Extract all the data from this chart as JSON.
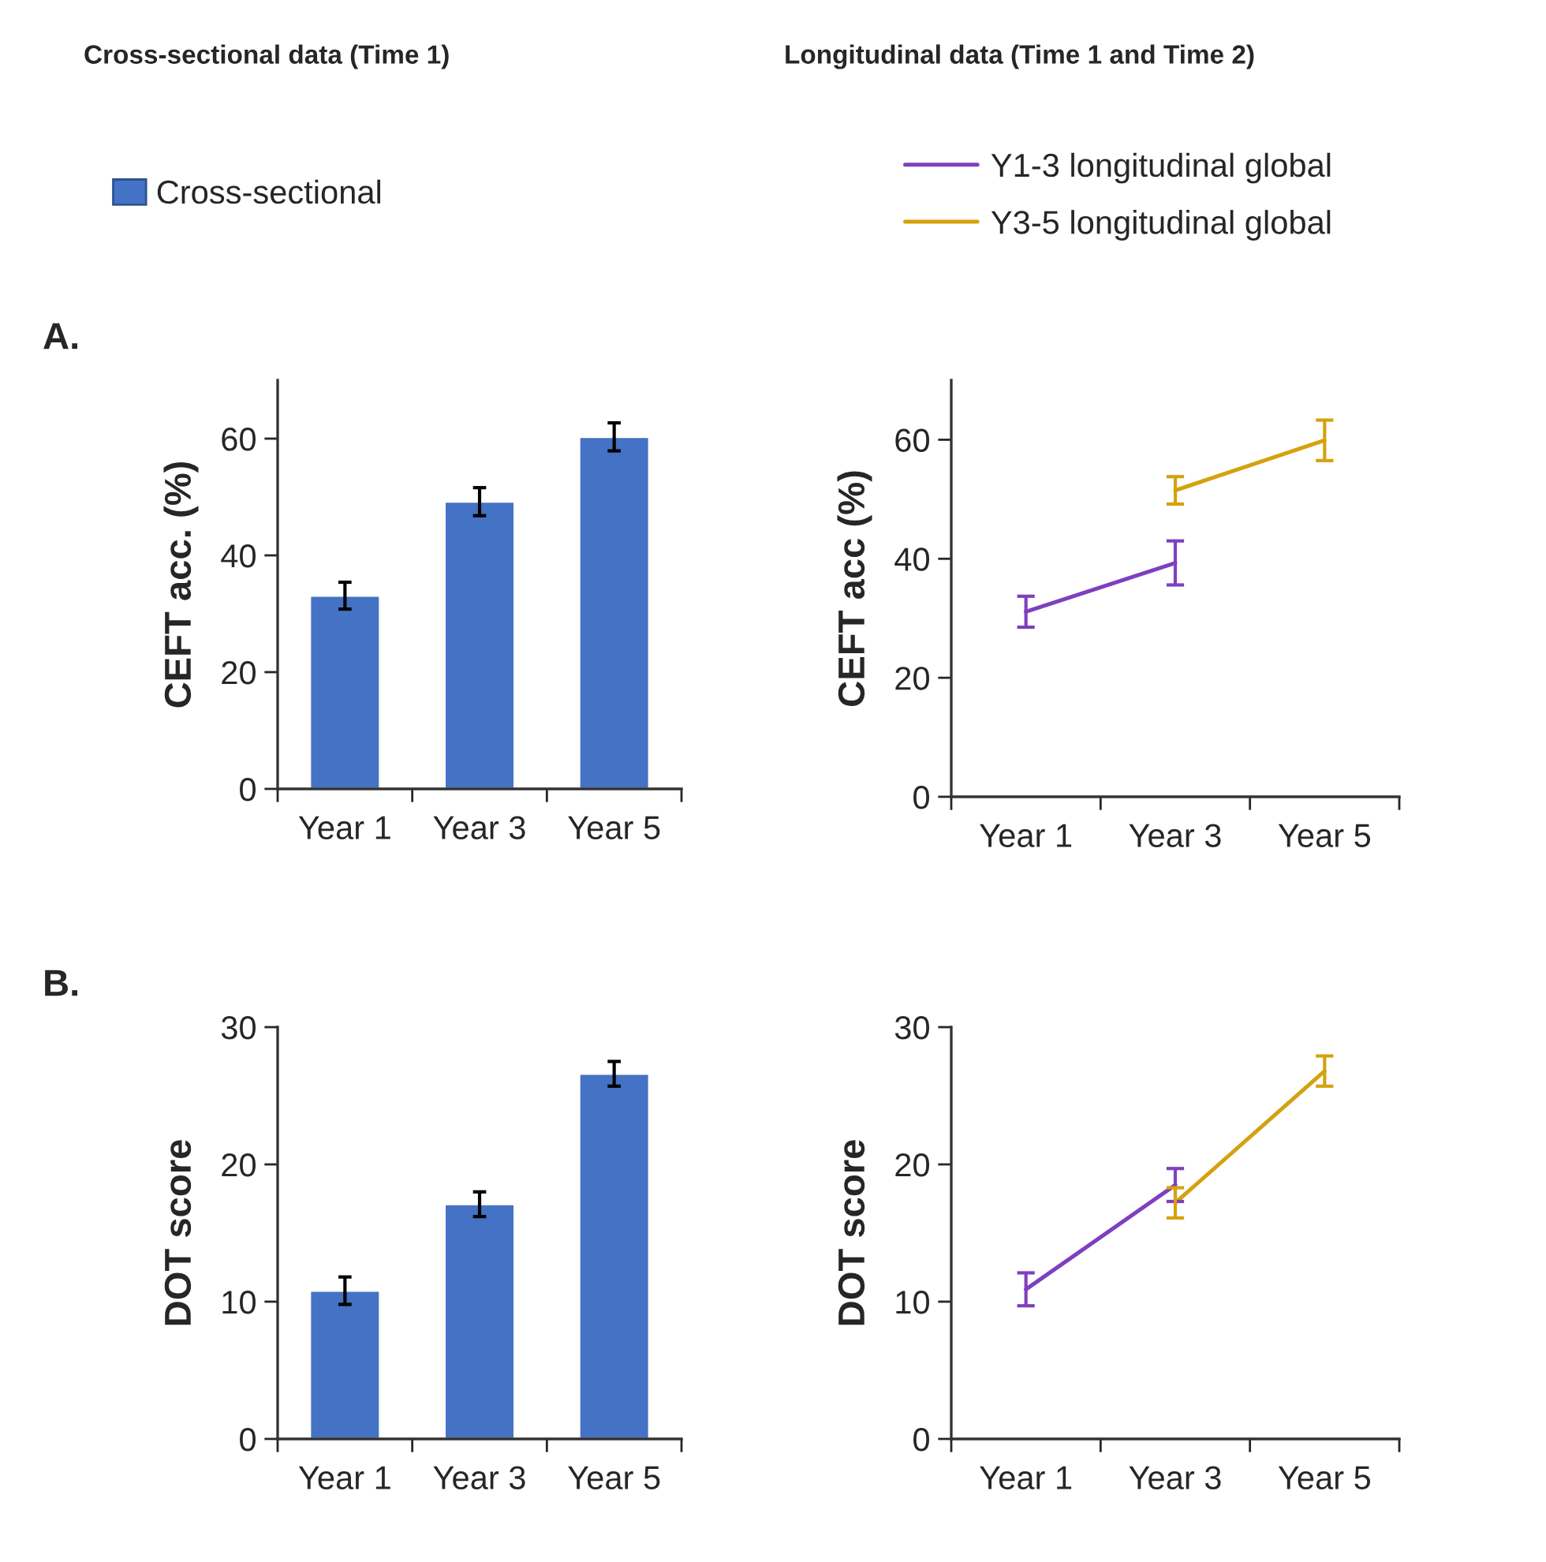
{
  "chart_data": [
    {
      "type": "bar",
      "title": "Cross-sectional data (Time 1)",
      "ylabel": "CEFT acc. (%)",
      "annotations": [
        "A."
      ],
      "categories": [
        "Year 1",
        "Year 3",
        "Year 5"
      ],
      "series": [
        {
          "name": "Cross-sectional",
          "color": "#4472c4",
          "values": [
            33.1,
            49.2,
            60.3
          ],
          "errors": [
            2.3,
            2.4,
            2.4
          ]
        }
      ],
      "ylim": [
        0,
        70
      ],
      "yticks": [
        0,
        20,
        40,
        60
      ],
      "legend": "top",
      "grid": false
    },
    {
      "type": "line",
      "title": "Longitudinal data (Time 1 and Time 2)",
      "ylabel": "CEFT acc (%)",
      "categories": [
        "Year 1",
        "Year 3",
        "Year 5"
      ],
      "series": [
        {
          "name": "Y1-3 longitudinal global",
          "color": "#7f3fbf",
          "x": [
            "Year 1",
            "Year 3"
          ],
          "values": [
            31.1,
            39.3
          ],
          "errors": [
            2.6,
            3.7
          ]
        },
        {
          "name": "Y3-5 longitudinal global",
          "color": "#d4a20f",
          "x": [
            "Year 3",
            "Year 5"
          ],
          "values": [
            51.5,
            59.9
          ],
          "errors": [
            2.3,
            3.4
          ]
        }
      ],
      "ylim": [
        0,
        70
      ],
      "yticks": [
        0,
        20,
        40,
        60
      ],
      "legend": "top",
      "marker": "none",
      "line_style": "solid",
      "grid": false
    },
    {
      "type": "bar",
      "ylabel": "DOT score",
      "annotations": [
        "B."
      ],
      "categories": [
        "Year 1",
        "Year 3",
        "Year 5"
      ],
      "series": [
        {
          "color": "#4472c4",
          "values": [
            10.8,
            17.1,
            26.6
          ],
          "errors": [
            1.0,
            0.9,
            0.9
          ]
        }
      ],
      "ylim": [
        0,
        30
      ],
      "yticks": [
        0,
        10,
        20,
        30
      ],
      "grid": false
    },
    {
      "type": "line",
      "ylabel": "DOT score",
      "categories": [
        "Year 1",
        "Year 3",
        "Year 5"
      ],
      "series": [
        {
          "color": "#7f3fbf",
          "x": [
            "Year 1",
            "Year 3"
          ],
          "values": [
            10.9,
            18.5
          ],
          "errors": [
            1.2,
            1.2
          ]
        },
        {
          "color": "#d4a20f",
          "x": [
            "Year 3",
            "Year 5"
          ],
          "values": [
            17.2,
            26.8
          ],
          "errors": [
            1.1,
            1.1
          ]
        }
      ],
      "ylim": [
        0,
        30
      ],
      "yticks": [
        0,
        10,
        20,
        30
      ],
      "marker": "none",
      "line_style": "solid",
      "grid": false
    }
  ]
}
